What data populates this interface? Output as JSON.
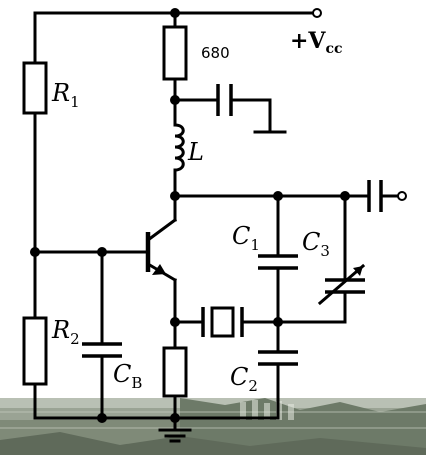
{
  "labels": {
    "r1": "R",
    "r1_sub": "1",
    "r2": "R",
    "r2_sub": "2",
    "l": "L",
    "c1": "C",
    "c1_sub": "1",
    "c2": "C",
    "c2_sub": "2",
    "c3": "C",
    "c3_sub": "3",
    "cb": "C",
    "cb_sub": "B",
    "res_value": "680",
    "vcc_plus": "+V",
    "vcc_sub": "cc"
  },
  "colors": {
    "wire": "#000000",
    "background": "#ffffff",
    "photo_strip": "#8f9a8a"
  }
}
